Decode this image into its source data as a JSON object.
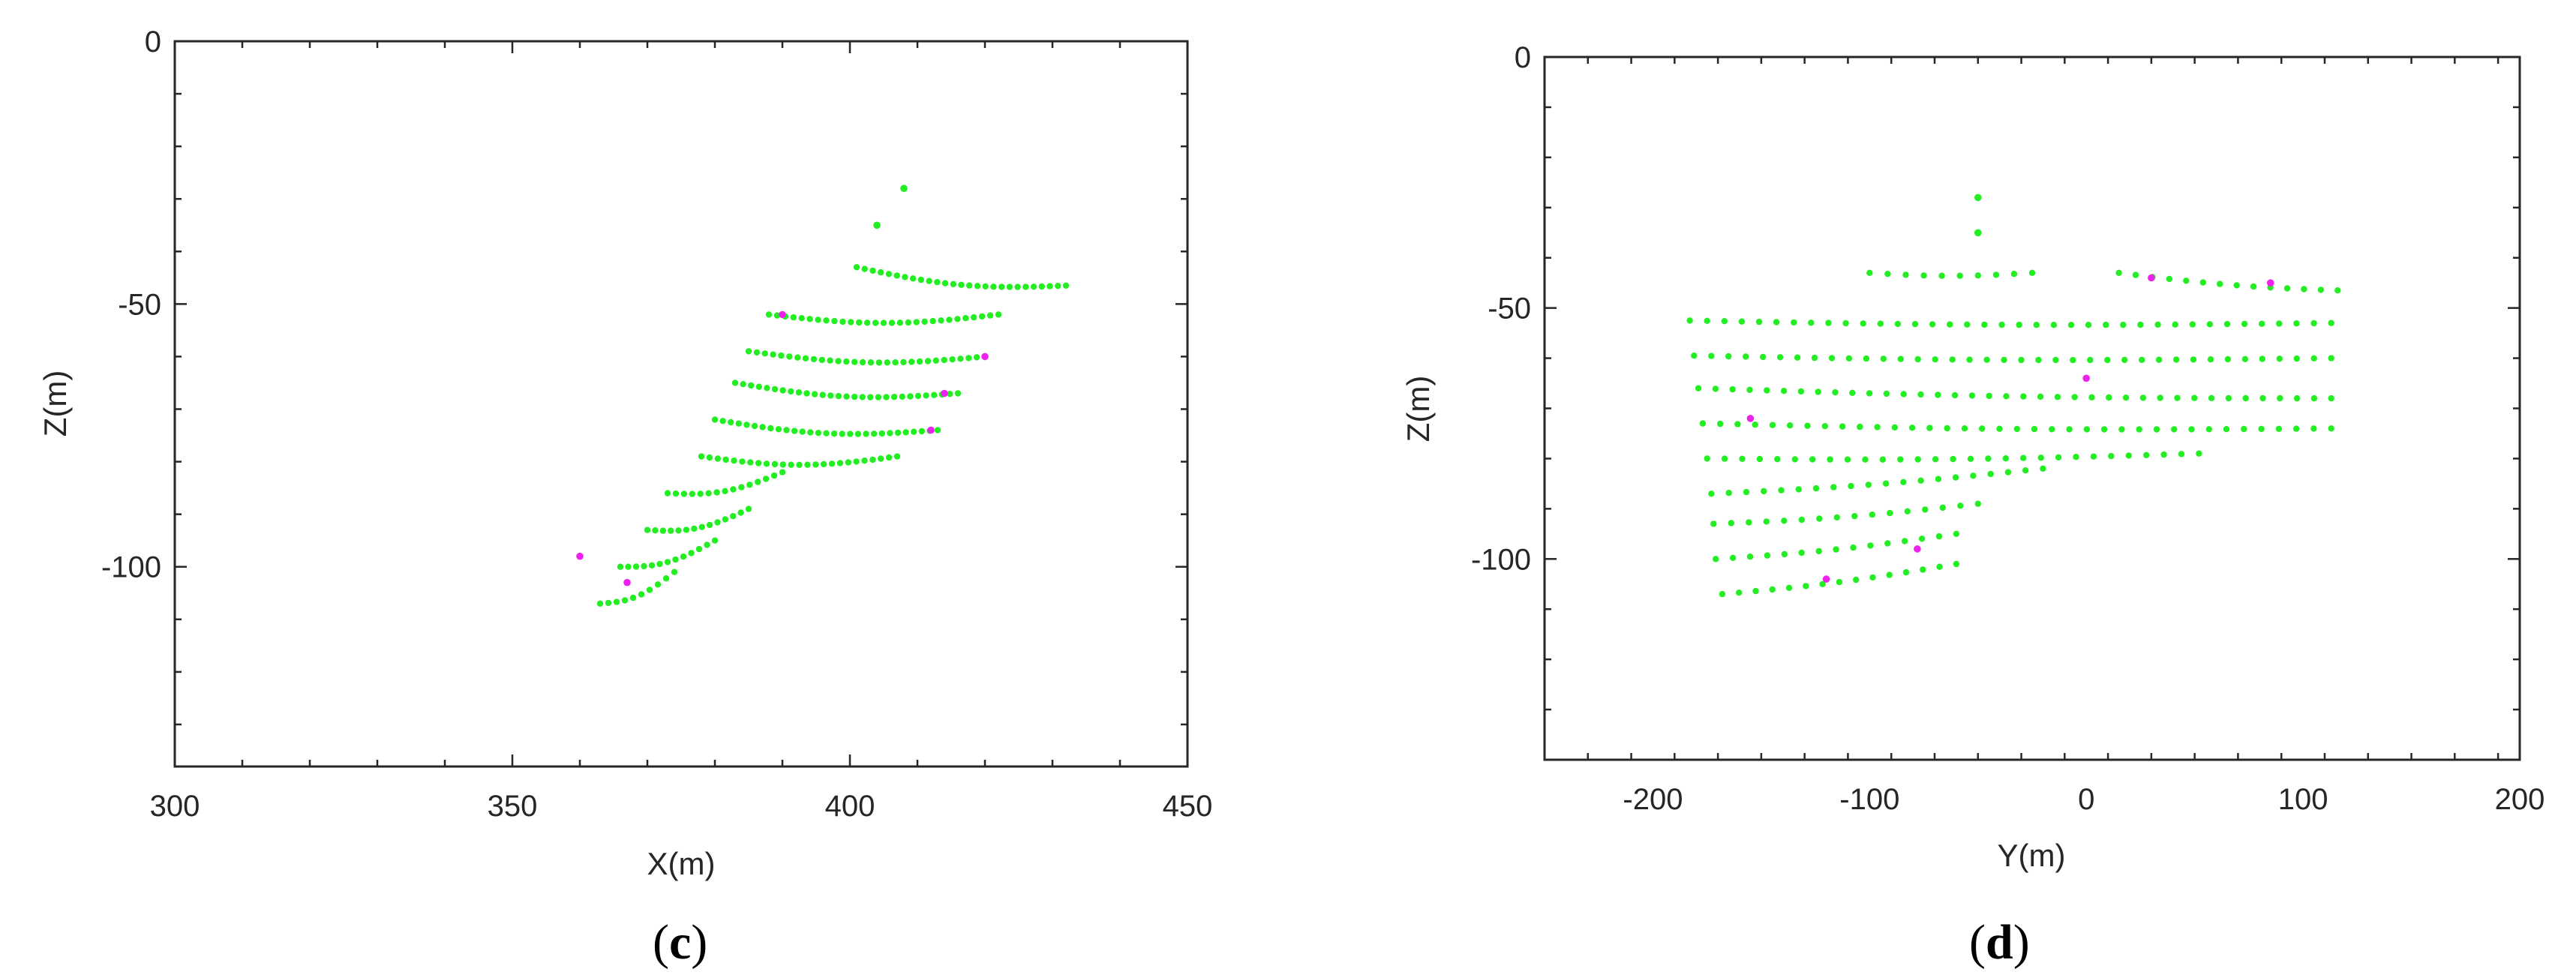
{
  "chart_data": [
    {
      "type": "scatter",
      "panel": "(c)",
      "panel_letter": "c",
      "xlabel": "X(m)",
      "ylabel": "Z(m)",
      "xlim": [
        300,
        450
      ],
      "ylim": [
        -138,
        0
      ],
      "xticks": [
        300,
        350,
        400,
        450
      ],
      "yticks": [
        0,
        -50,
        -100
      ],
      "grid": false,
      "colors": {
        "green": "#22ee22",
        "magenta": "#ee22ee"
      },
      "rows": [
        {
          "x_start": 401,
          "x_end": 432,
          "z_start": -43,
          "z_end": -46.5
        },
        {
          "x_start": 388,
          "x_end": 422,
          "z_start": -52,
          "z_end": -52
        },
        {
          "x_start": 385,
          "x_end": 420,
          "z_start": -59,
          "z_end": -60
        },
        {
          "x_start": 383,
          "x_end": 416,
          "z_start": -65,
          "z_end": -67
        },
        {
          "x_start": 380,
          "x_end": 413,
          "z_start": -72,
          "z_end": -74
        },
        {
          "x_start": 378,
          "x_end": 407,
          "z_start": -79,
          "z_end": -79
        },
        {
          "x_start": 373,
          "x_end": 390,
          "z_start": -86,
          "z_end": -82
        },
        {
          "x_start": 370,
          "x_end": 385,
          "z_start": -93,
          "z_end": -89
        },
        {
          "x_start": 366,
          "x_end": 380,
          "z_start": -100,
          "z_end": -95
        },
        {
          "x_start": 363,
          "x_end": 374,
          "z_start": -107,
          "z_end": -101
        }
      ],
      "extra_points": [
        {
          "x": 404,
          "z": -35,
          "color": "green"
        },
        {
          "x": 408,
          "z": -28,
          "color": "green"
        },
        {
          "x": 360,
          "z": -98,
          "color": "magenta"
        },
        {
          "x": 367,
          "z": -103,
          "color": "magenta"
        },
        {
          "x": 412,
          "z": -74,
          "color": "magenta"
        },
        {
          "x": 420,
          "z": -60,
          "color": "magenta"
        },
        {
          "x": 390,
          "z": -52,
          "color": "magenta"
        },
        {
          "x": 414,
          "z": -67,
          "color": "magenta"
        }
      ]
    },
    {
      "type": "scatter",
      "panel": "(d)",
      "panel_letter": "d",
      "xlabel": "Y(m)",
      "ylabel": "Z(m)",
      "xlim": [
        -250,
        200
      ],
      "ylim": [
        -140,
        0
      ],
      "xticks": [
        -200,
        -100,
        0,
        100,
        200
      ],
      "yticks": [
        0,
        -50,
        -100
      ],
      "grid": false,
      "colors": {
        "green": "#22ee22",
        "magenta": "#ee22ee"
      },
      "rows": [
        {
          "y_start": -100,
          "y_end": -25,
          "z_start": -43,
          "z_end": -43
        },
        {
          "y_start": 15,
          "y_end": 116,
          "z_start": -43,
          "z_end": -46.5
        },
        {
          "y_start": -183,
          "y_end": 113,
          "z_start": -52.5,
          "z_end": -53
        },
        {
          "y_start": -181,
          "y_end": 113,
          "z_start": -59.5,
          "z_end": -60
        },
        {
          "y_start": -179,
          "y_end": 113,
          "z_start": -66,
          "z_end": -68
        },
        {
          "y_start": -177,
          "y_end": 113,
          "z_start": -73,
          "z_end": -74
        },
        {
          "y_start": -175,
          "y_end": 52,
          "z_start": -80,
          "z_end": -79
        },
        {
          "y_start": -173,
          "y_end": -20,
          "z_start": -87,
          "z_end": -82
        },
        {
          "y_start": -172,
          "y_end": -50,
          "z_start": -93,
          "z_end": -89
        },
        {
          "y_start": -171,
          "y_end": -60,
          "z_start": -100,
          "z_end": -95
        },
        {
          "y_start": -168,
          "y_end": -60,
          "z_start": -107,
          "z_end": -101
        }
      ],
      "extra_points": [
        {
          "x": -50,
          "z": -28,
          "color": "green"
        },
        {
          "x": -50,
          "z": -35,
          "color": "green"
        },
        {
          "x": 30,
          "z": -44,
          "color": "magenta"
        },
        {
          "x": 85,
          "z": -45,
          "color": "magenta"
        },
        {
          "x": -155,
          "z": -72,
          "color": "magenta"
        },
        {
          "x": -120,
          "z": -104,
          "color": "magenta"
        },
        {
          "x": -78,
          "z": -98,
          "color": "magenta"
        },
        {
          "x": 0,
          "z": -64,
          "color": "magenta"
        }
      ]
    }
  ]
}
